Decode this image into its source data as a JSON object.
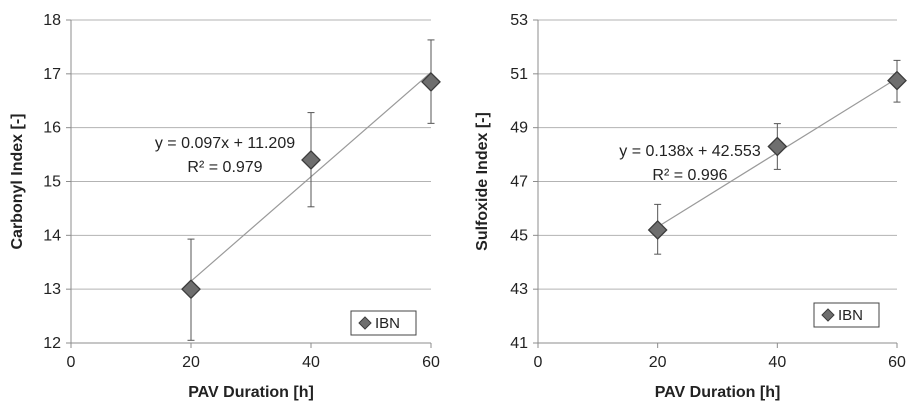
{
  "chart_data": [
    {
      "type": "scatter",
      "xlabel": "PAV Duration [h]",
      "ylabel": "Carbonyl Index [-]",
      "xlim": [
        0,
        60
      ],
      "ylim": [
        12,
        18
      ],
      "xticks": [
        0,
        20,
        40,
        60
      ],
      "yticks": [
        12,
        13,
        14,
        15,
        16,
        17,
        18
      ],
      "grid": "horizontal",
      "legend_position": "bottom-right",
      "series": [
        {
          "name": "IBN",
          "marker": "diamond",
          "color": "#6e6e6e",
          "points": [
            {
              "x": 20,
              "y": 13.0,
              "err_low": 12.05,
              "err_high": 13.93
            },
            {
              "x": 40,
              "y": 15.4,
              "err_low": 14.53,
              "err_high": 16.28
            },
            {
              "x": 60,
              "y": 16.85,
              "err_low": 16.08,
              "err_high": 17.63
            }
          ]
        }
      ],
      "trendline": {
        "slope": 0.097,
        "intercept": 11.209,
        "x_range": [
          20,
          60
        ]
      },
      "annotations": [
        "y = 0.097x + 11.209",
        "R² = 0.979"
      ]
    },
    {
      "type": "scatter",
      "xlabel": "PAV Duration [h]",
      "ylabel": "Sulfoxide Index [-]",
      "xlim": [
        0,
        60
      ],
      "ylim": [
        41,
        53
      ],
      "xticks": [
        0,
        20,
        40,
        60
      ],
      "yticks": [
        41,
        43,
        45,
        47,
        49,
        51,
        53
      ],
      "grid": "horizontal",
      "legend_position": "bottom-right",
      "series": [
        {
          "name": "IBN",
          "marker": "diamond",
          "color": "#6e6e6e",
          "points": [
            {
              "x": 20,
              "y": 45.2,
              "err_low": 44.3,
              "err_high": 46.15
            },
            {
              "x": 40,
              "y": 48.3,
              "err_low": 47.45,
              "err_high": 49.15
            },
            {
              "x": 60,
              "y": 50.75,
              "err_low": 49.95,
              "err_high": 51.5
            }
          ]
        }
      ],
      "trendline": {
        "slope": 0.138,
        "intercept": 42.553,
        "x_range": [
          20,
          60
        ]
      },
      "annotations": [
        "y = 0.138x + 42.553",
        "R² = 0.996"
      ]
    }
  ]
}
